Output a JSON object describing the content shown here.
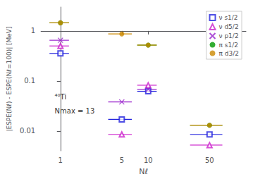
{
  "chart_data": {
    "type": "scatter",
    "xlabel": "Nℓ",
    "ylabel": "|ESPE(Nℓ) - ESPE(Nℓ=100)| [MeV]",
    "annotations": [
      "⁴⁰Ti",
      "Nmax = 13"
    ],
    "x": [
      1,
      5,
      10,
      50
    ],
    "xerr_lo": [
      0.25,
      1.5,
      2.5,
      20.0
    ],
    "xerr_hi": [
      0.25,
      1.5,
      2.5,
      20.0
    ],
    "series": [
      {
        "name": "ν s1/2",
        "color": "#2222dd",
        "marker": "open_square",
        "values": [
          0.355,
          0.017,
          0.062,
          0.0085
        ]
      },
      {
        "name": "ν d5/2",
        "color": "#cc22cc",
        "marker": "open_triangle",
        "values": [
          0.5,
          0.0085,
          0.082,
          0.0052
        ]
      },
      {
        "name": "ν p1/2",
        "color": "#9922cc",
        "marker": "x",
        "values": [
          0.65,
          0.038,
          0.068,
          null
        ]
      },
      {
        "name": "π s1/2",
        "color": "#009900",
        "marker": "circle",
        "values": [
          1.45,
          null,
          0.52,
          0.013
        ]
      },
      {
        "name": "π d3/2",
        "color": "#cc8800",
        "marker": "circle",
        "values": [
          1.45,
          0.87,
          0.52,
          0.013
        ]
      }
    ],
    "xlim": [
      0.6,
      130
    ],
    "ylim": [
      0.004,
      3.0
    ],
    "xticks": [
      1,
      5,
      10,
      50
    ],
    "yticks": [
      0.01,
      0.1,
      1
    ],
    "log": true,
    "grid": false,
    "legend": "upper right"
  }
}
